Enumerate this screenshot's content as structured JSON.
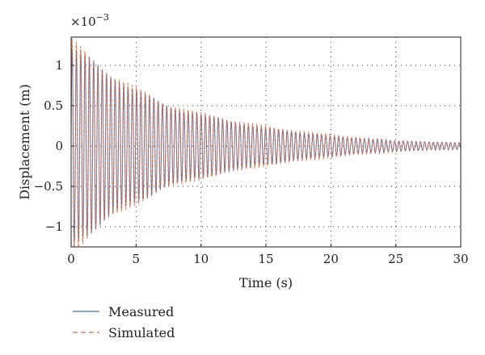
{
  "chart_data": {
    "type": "line",
    "xlabel": "Time (s)",
    "ylabel": "Displacement (m)",
    "scale_multiplier": "×10",
    "scale_exponent": "−3",
    "xlim": [
      0,
      30
    ],
    "ylim": [
      -1.25,
      1.35
    ],
    "xticks": [
      0,
      5,
      10,
      15,
      20,
      25,
      30
    ],
    "xtick_labels": [
      "0",
      "5",
      "10",
      "15",
      "20",
      "25",
      "30"
    ],
    "yticks": [
      -1,
      -0.5,
      0,
      0.5,
      1
    ],
    "ytick_labels": [
      "−1",
      "−0.5",
      "0",
      "0.5",
      "1"
    ],
    "grid": true,
    "legend_position": "bottom-left",
    "series": [
      {
        "name": "Measured",
        "color": "#3a6fc4",
        "style": "solid",
        "envelope_t": [
          0,
          1,
          2,
          3,
          5,
          7,
          10,
          15,
          20,
          25,
          30
        ],
        "envelope_amp": [
          1.2,
          1.1,
          1.0,
          0.88,
          0.68,
          0.52,
          0.38,
          0.22,
          0.12,
          0.06,
          0.04
        ]
      },
      {
        "name": "Simulated",
        "color": "#e06a36",
        "style": "dashed",
        "envelope_t": [
          0,
          1,
          2,
          3,
          5,
          7,
          10,
          15,
          20,
          25,
          30
        ],
        "envelope_amp": [
          1.3,
          1.15,
          1.02,
          0.9,
          0.7,
          0.54,
          0.4,
          0.24,
          0.14,
          0.07,
          0.04
        ]
      }
    ]
  }
}
